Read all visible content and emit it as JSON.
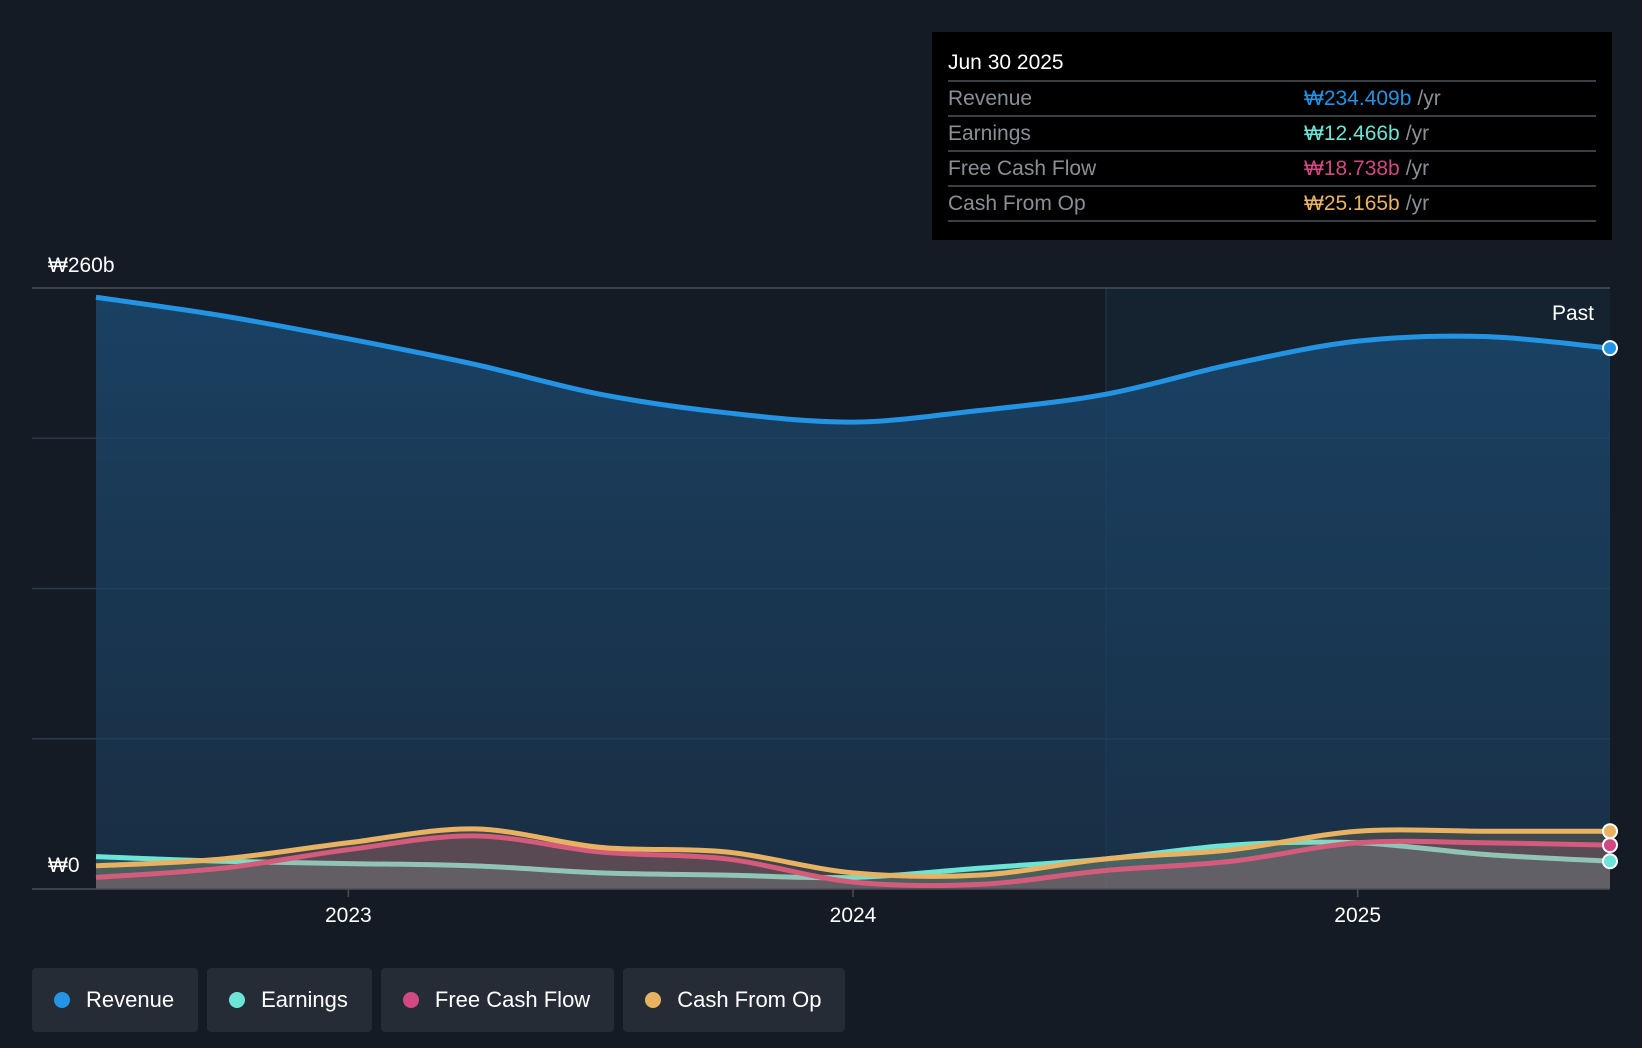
{
  "chart_data": {
    "type": "area",
    "y_axis": {
      "max_label": "₩260b",
      "min_label": "₩0",
      "ylim": [
        0,
        260
      ]
    },
    "x_ticks": [
      "2023",
      "2024",
      "2025"
    ],
    "past_label": "Past",
    "x": [
      2022.5,
      2022.75,
      2023.0,
      2023.25,
      2023.5,
      2023.75,
      2024.0,
      2024.25,
      2024.5,
      2024.75,
      2025.0,
      2025.25,
      2025.5
    ],
    "series": [
      {
        "name": "Revenue",
        "color": "#2394e3",
        "values": [
          256,
          248,
          238,
          227,
          214,
          206,
          202,
          207,
          214,
          227,
          237,
          239,
          234
        ]
      },
      {
        "name": "Earnings",
        "color": "#6ce5d6",
        "values": [
          14,
          12,
          11,
          10,
          7,
          6,
          5,
          9,
          13,
          19,
          20,
          15,
          12
        ]
      },
      {
        "name": "Free Cash Flow",
        "color": "#d14883",
        "values": [
          5,
          9,
          17,
          23,
          16,
          13,
          3,
          2,
          8,
          12,
          20,
          20,
          19
        ]
      },
      {
        "name": "Cash From Op",
        "color": "#e8b262",
        "values": [
          10,
          13,
          20,
          26,
          18,
          16,
          7,
          6,
          13,
          17,
          25,
          25,
          25
        ]
      }
    ]
  },
  "tooltip": {
    "date": "Jun 30 2025",
    "unit": "/yr",
    "rows": [
      {
        "label": "Revenue",
        "value": "₩234.409b",
        "color": "#2394e3"
      },
      {
        "label": "Earnings",
        "value": "₩12.466b",
        "color": "#6ce5d6"
      },
      {
        "label": "Free Cash Flow",
        "value": "₩18.738b",
        "color": "#d14883"
      },
      {
        "label": "Cash From Op",
        "value": "₩25.165b",
        "color": "#e8b262"
      }
    ]
  },
  "legend": [
    {
      "label": "Revenue",
      "color": "#2394e3"
    },
    {
      "label": "Earnings",
      "color": "#6ce5d6"
    },
    {
      "label": "Free Cash Flow",
      "color": "#d14883"
    },
    {
      "label": "Cash From Op",
      "color": "#e8b262"
    }
  ]
}
